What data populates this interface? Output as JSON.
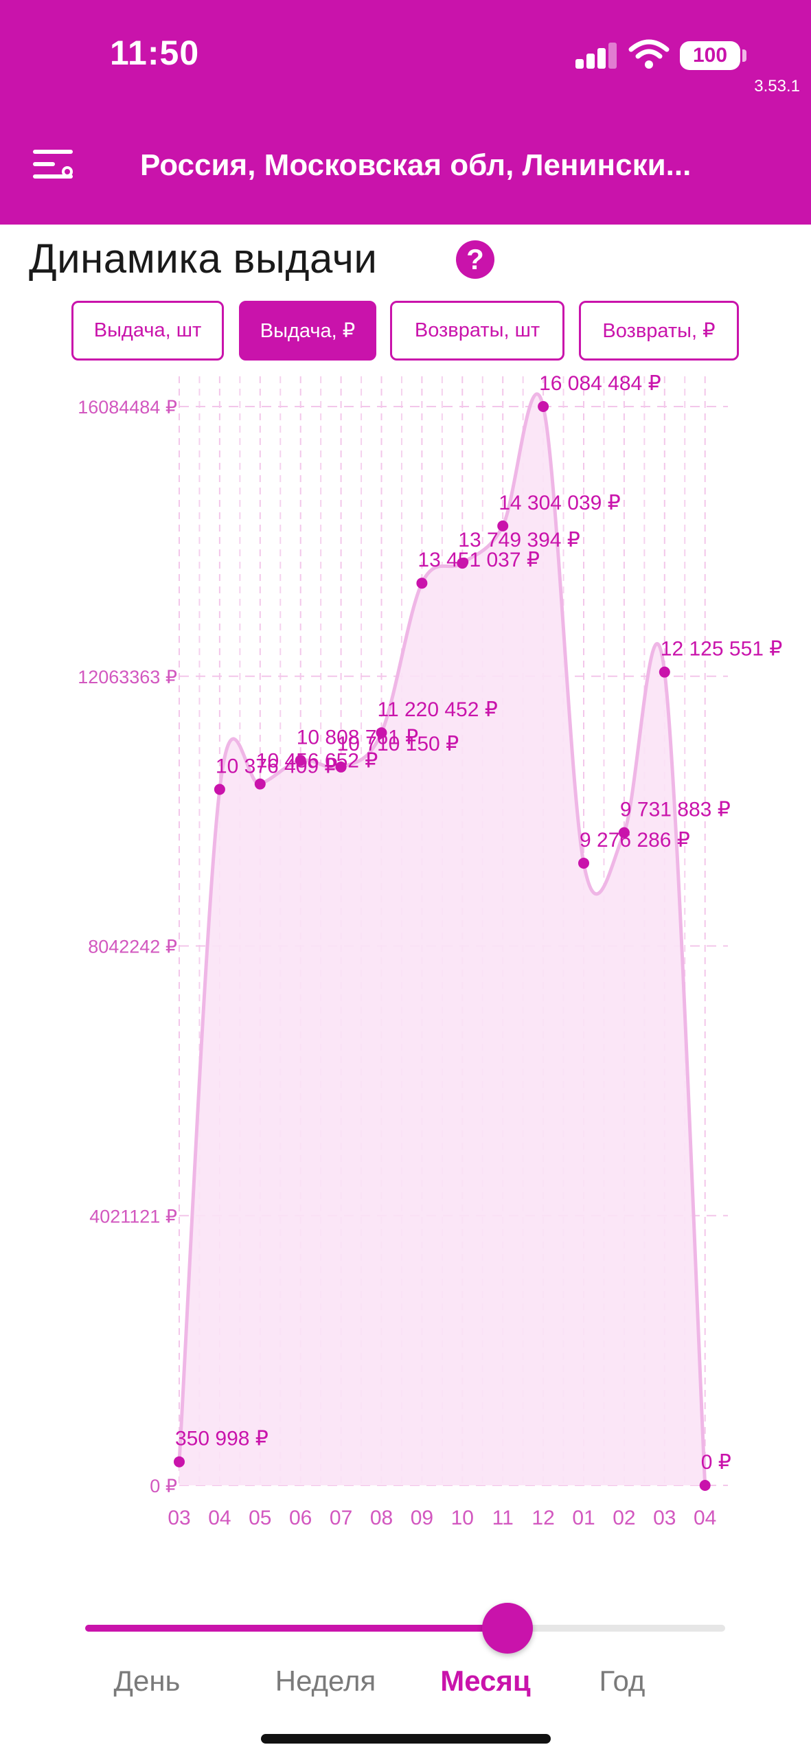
{
  "status_bar": {
    "time": "11:50",
    "battery": "100",
    "version": "3.53.1"
  },
  "header": {
    "location": "Россия, Московская обл, Ленински..."
  },
  "page": {
    "title": "Динамика выдачи",
    "help_icon": "question-circle-icon"
  },
  "tabs": [
    {
      "label": "Выдача, шт",
      "active": false
    },
    {
      "label": "Выдача, ₽",
      "active": true
    },
    {
      "label": "Возвраты, шт",
      "active": false
    },
    {
      "label": "Возвраты, ₽",
      "active": false
    }
  ],
  "chart_data": {
    "type": "area",
    "title": "",
    "xlabel": "",
    "ylabel": "",
    "ylim": [
      0,
      16084484
    ],
    "grid": true,
    "y_ticks": [
      "16084484 ₽",
      "12063363 ₽",
      "8042242 ₽",
      "4021121 ₽",
      "0 ₽"
    ],
    "y_tick_values": [
      16084484,
      12063363,
      8042242,
      4021121,
      0
    ],
    "categories": [
      "03",
      "04",
      "05",
      "06",
      "07",
      "08",
      "09",
      "10",
      "11",
      "12",
      "01",
      "02",
      "03",
      "04"
    ],
    "values": [
      350998,
      10376409,
      10456652,
      10808761,
      10710150,
      11220452,
      13451037,
      13749394,
      14304039,
      16084484,
      9276286,
      9731883,
      12125551,
      0
    ],
    "value_labels": [
      "350 998  ₽",
      "10 376 409  ₽",
      "10 456 652  ₽",
      "10 808 761  ₽",
      "10 710 150  ₽",
      "11 220 452  ₽",
      "13 451 037  ₽",
      "13 749 394  ₽",
      "14 304 039  ₽",
      "16 084 484  ₽",
      "9 276 286  ₽",
      "9 731 883  ₽",
      "12 125 551  ₽",
      "0  ₽"
    ],
    "colors": {
      "line": "#efb6e6",
      "fill": "#fbe3f6",
      "point": "#c913ab",
      "label": "#c913ab",
      "grid": "#f3c6ea"
    }
  },
  "slider": {
    "value": 0.66
  },
  "periods": [
    {
      "label": "День",
      "active": false
    },
    {
      "label": "Неделя",
      "active": false
    },
    {
      "label": "Месяц",
      "active": true
    },
    {
      "label": "Год",
      "active": false
    }
  ],
  "colors": {
    "accent": "#c913ab"
  }
}
